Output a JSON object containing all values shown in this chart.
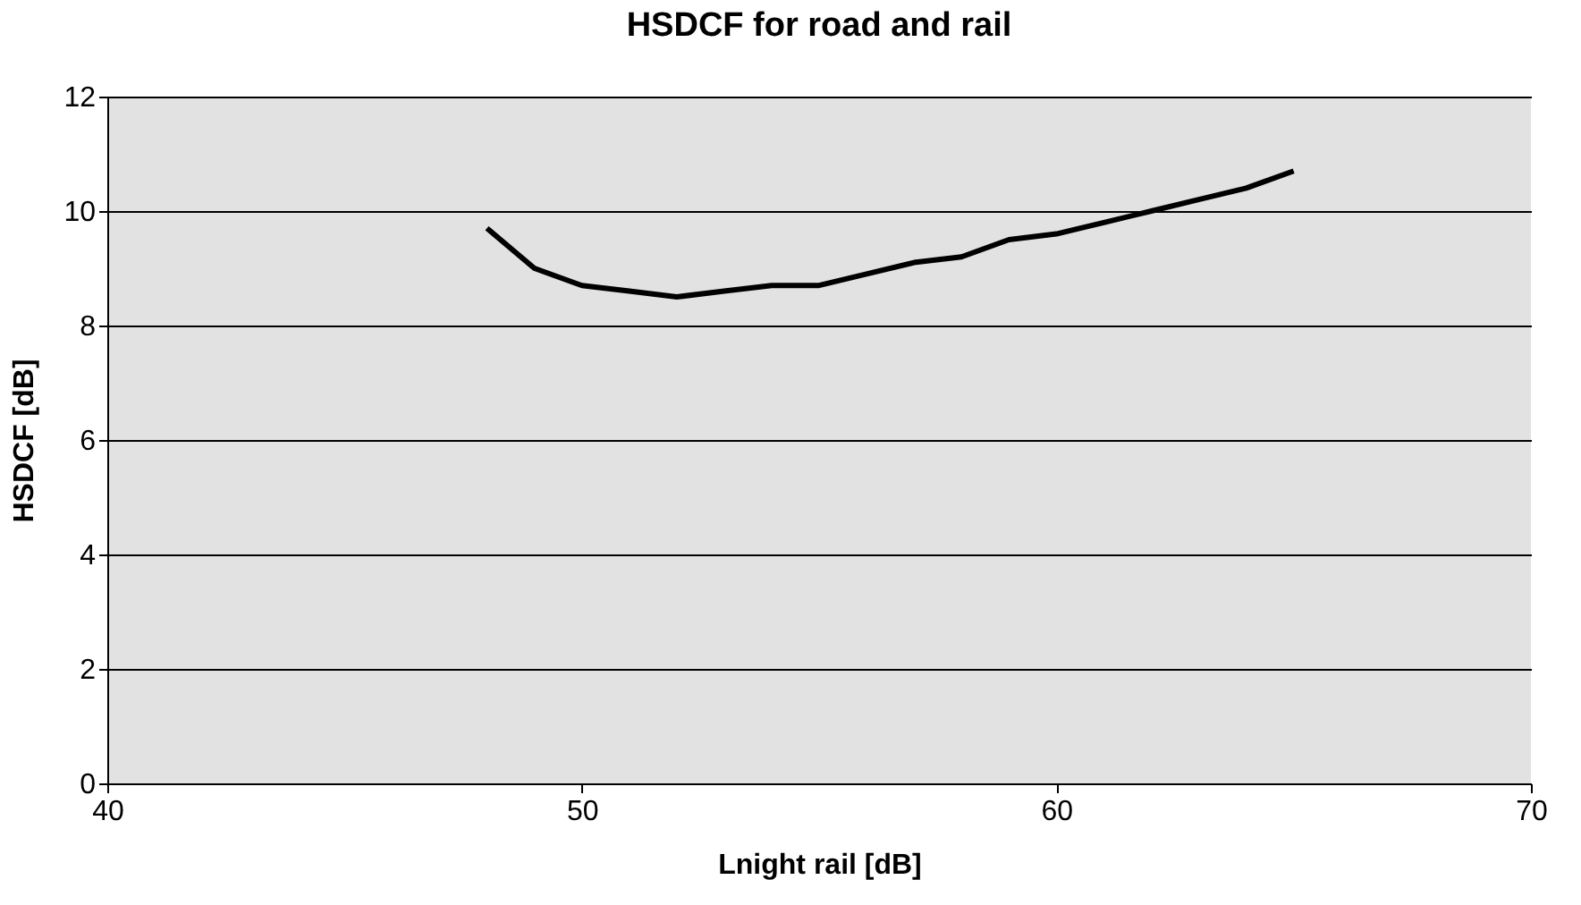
{
  "chart_data": {
    "type": "line",
    "title": "HSDCF for road and rail",
    "xlabel": "Lnight rail [dB]",
    "ylabel": "HSDCF [dB]",
    "x": [
      48,
      49,
      50,
      51,
      52,
      53,
      54,
      55,
      56,
      57,
      58,
      59,
      60,
      61,
      62,
      63,
      64,
      65
    ],
    "series": [
      {
        "color": "#000000",
        "values": [
          9.7,
          9.0,
          8.7,
          8.6,
          8.5,
          8.6,
          8.7,
          8.7,
          8.9,
          9.1,
          9.2,
          9.5,
          9.6,
          9.8,
          10.0,
          10.2,
          10.4,
          10.7
        ]
      }
    ],
    "xlim": [
      40,
      70
    ],
    "xticks": [
      40,
      50,
      60,
      70
    ],
    "ylim": [
      0,
      12
    ],
    "yticks": [
      0,
      2,
      4,
      6,
      8,
      10,
      12
    ],
    "grid": "y",
    "legend": false,
    "marker": "none",
    "line_style": "solid"
  }
}
